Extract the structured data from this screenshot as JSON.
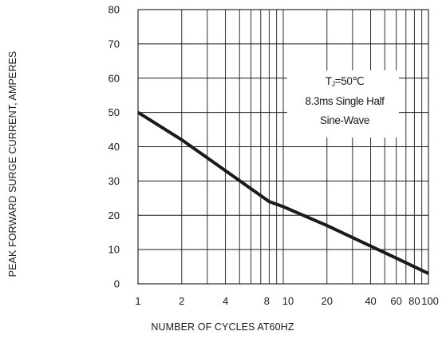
{
  "chart_data": {
    "type": "line",
    "xscale": "log",
    "xlim": [
      1,
      100
    ],
    "ylim": [
      0,
      80
    ],
    "xlabel": "NUMBER OF CYCLES AT60HZ",
    "ylabel": "PEAK FORWARD SURGE CURRENT, AMPERES",
    "grid": true,
    "x_gridlines": [
      1,
      2,
      3,
      4,
      5,
      6,
      7,
      8,
      9,
      10,
      20,
      30,
      40,
      50,
      60,
      70,
      80,
      90,
      100
    ],
    "y_ticks": [
      0,
      10,
      20,
      30,
      40,
      50,
      60,
      70,
      80
    ],
    "x_ticks": [
      {
        "value": 1,
        "label": "1"
      },
      {
        "value": 2,
        "label": "2"
      },
      {
        "value": 4,
        "label": "4"
      },
      {
        "value": 8,
        "label": "8"
      },
      {
        "value": 10,
        "label": "10"
      },
      {
        "value": 20,
        "label": "20"
      },
      {
        "value": 40,
        "label": "40"
      },
      {
        "value": 60,
        "label": "60"
      },
      {
        "value": 80,
        "label": "80"
      },
      {
        "value": 100,
        "label": "100"
      }
    ],
    "series": [
      {
        "color": "#1a1a1a",
        "x": [
          1,
          2,
          4,
          8,
          10,
          20,
          40,
          60,
          100
        ],
        "y": [
          50,
          42,
          33,
          24,
          22.5,
          17,
          11,
          7.5,
          3
        ]
      }
    ],
    "annotation": {
      "lines": [
        "TJ=50℃",
        "8.3ms Single Half",
        "Sine-Wave"
      ]
    }
  }
}
